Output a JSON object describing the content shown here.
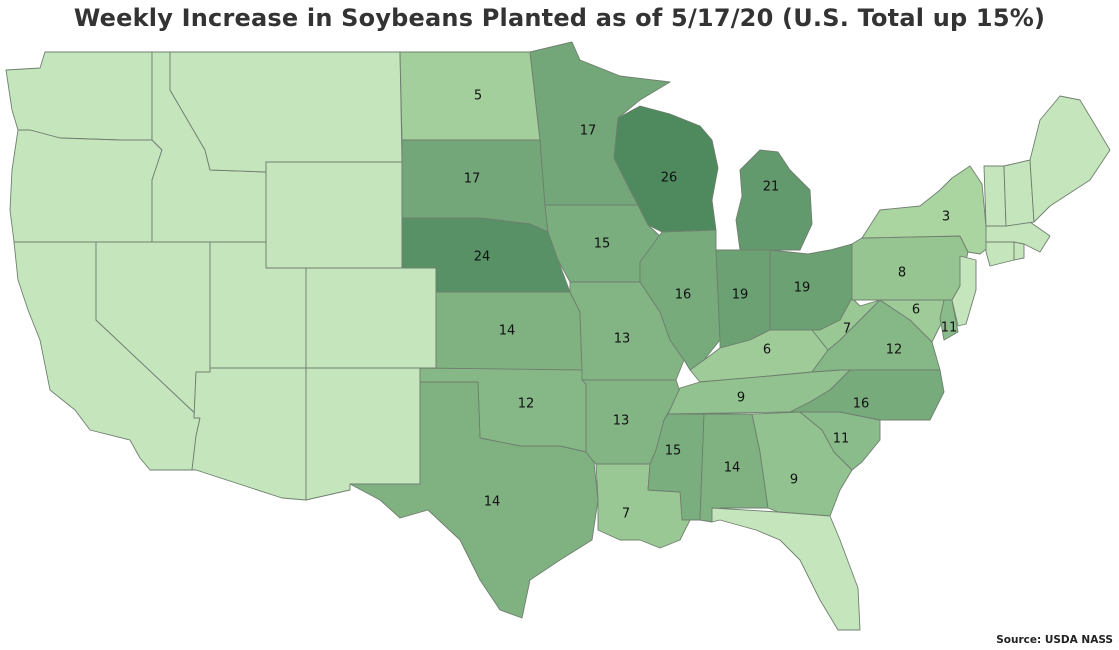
{
  "title": "Weekly Increase in Soybeans Planted as of 5/17/20 (U.S. Total up 15%)",
  "source": "Source: USDA NASS",
  "colors": {
    "none": "#c5e5bc",
    "scale_low": "#b6dfa9",
    "scale_high": "#4f8a5f",
    "border": "#6f7f6f"
  },
  "map_data": {
    "type": "choropleth",
    "region": "Contiguous United States",
    "value_max": 26,
    "states": [
      {
        "name": "WA",
        "value": null
      },
      {
        "name": "OR",
        "value": null
      },
      {
        "name": "CA",
        "value": null
      },
      {
        "name": "ID",
        "value": null
      },
      {
        "name": "NV",
        "value": null
      },
      {
        "name": "MT",
        "value": null
      },
      {
        "name": "WY",
        "value": null
      },
      {
        "name": "UT",
        "value": null
      },
      {
        "name": "AZ",
        "value": null
      },
      {
        "name": "CO",
        "value": null
      },
      {
        "name": "NM",
        "value": null
      },
      {
        "name": "ND",
        "value": 5
      },
      {
        "name": "SD",
        "value": 17
      },
      {
        "name": "NE",
        "value": 24
      },
      {
        "name": "KS",
        "value": 14
      },
      {
        "name": "OK",
        "value": 12
      },
      {
        "name": "TX",
        "value": 14
      },
      {
        "name": "MN",
        "value": 17
      },
      {
        "name": "IA",
        "value": 15
      },
      {
        "name": "MO",
        "value": 13
      },
      {
        "name": "AR",
        "value": 13
      },
      {
        "name": "LA",
        "value": 7
      },
      {
        "name": "WI",
        "value": 26
      },
      {
        "name": "IL",
        "value": 16
      },
      {
        "name": "MI",
        "value": 21
      },
      {
        "name": "IN",
        "value": 19
      },
      {
        "name": "OH",
        "value": 19
      },
      {
        "name": "KY",
        "value": 6
      },
      {
        "name": "TN",
        "value": 9
      },
      {
        "name": "MS",
        "value": 15
      },
      {
        "name": "AL",
        "value": 14
      },
      {
        "name": "GA",
        "value": 9
      },
      {
        "name": "FL",
        "value": null
      },
      {
        "name": "SC",
        "value": 11
      },
      {
        "name": "NC",
        "value": 16
      },
      {
        "name": "VA",
        "value": 12
      },
      {
        "name": "WV",
        "value": 7
      },
      {
        "name": "PA",
        "value": 8
      },
      {
        "name": "NY",
        "value": 3
      },
      {
        "name": "MD",
        "value": 6
      },
      {
        "name": "DE",
        "value": 11
      },
      {
        "name": "NJ",
        "value": null
      },
      {
        "name": "CT",
        "value": null
      },
      {
        "name": "RI",
        "value": null
      },
      {
        "name": "MA",
        "value": null
      },
      {
        "name": "VT",
        "value": null
      },
      {
        "name": "NH",
        "value": null
      },
      {
        "name": "ME",
        "value": null
      }
    ]
  }
}
